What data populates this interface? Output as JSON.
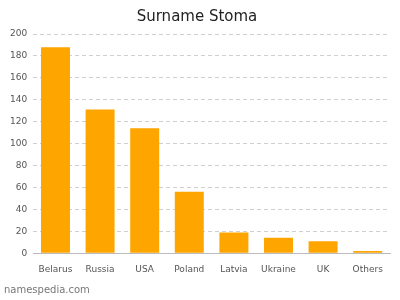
{
  "chart_data": {
    "type": "bar",
    "title": "Surname Stoma",
    "categories": [
      "Belarus",
      "Russia",
      "USA",
      "Poland",
      "Latvia",
      "Ukraine",
      "UK",
      "Others"
    ],
    "values": [
      188,
      131,
      114,
      56,
      19,
      14,
      11,
      2
    ],
    "color": "#FFA500",
    "ylim": [
      0,
      200
    ],
    "yticks": [
      0,
      20,
      40,
      60,
      80,
      100,
      120,
      140,
      160,
      180,
      200
    ],
    "grid": true,
    "annotations": [
      "namespedia.com"
    ]
  }
}
